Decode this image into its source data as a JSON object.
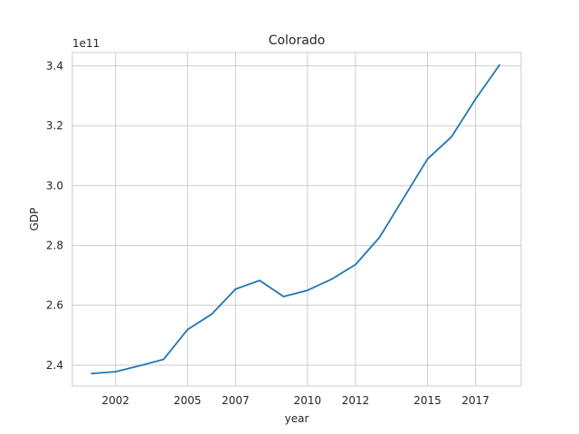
{
  "chart_data": {
    "type": "line",
    "title": "Colorado",
    "xlabel": "year",
    "ylabel": "GDP",
    "y_offset_label": "1e11",
    "xlim": [
      2000.2,
      2018.9
    ],
    "ylim": [
      2.33,
      3.445
    ],
    "x_ticks": [
      2002,
      2005,
      2007,
      2010,
      2012,
      2015,
      2017
    ],
    "x_tick_labels": [
      "2002",
      "2005",
      "2007",
      "2010",
      "2012",
      "2015",
      "2017"
    ],
    "y_ticks": [
      2.4,
      2.6,
      2.8,
      3.0,
      3.2,
      3.4
    ],
    "y_tick_labels": [
      "2.4",
      "2.6",
      "2.8",
      "3.0",
      "3.2",
      "3.4"
    ],
    "grid": true,
    "series": [
      {
        "color": "#1f77b4",
        "x": [
          2001,
          2002,
          2003,
          2004,
          2005,
          2006,
          2007,
          2008,
          2009,
          2010,
          2011,
          2012,
          2013,
          2014,
          2015,
          2016,
          2017,
          2018
        ],
        "y": [
          2.372,
          2.378,
          2.398,
          2.419,
          2.519,
          2.57,
          2.654,
          2.683,
          2.629,
          2.65,
          2.687,
          2.736,
          2.827,
          2.958,
          3.089,
          3.163,
          3.289,
          3.403
        ]
      }
    ]
  }
}
